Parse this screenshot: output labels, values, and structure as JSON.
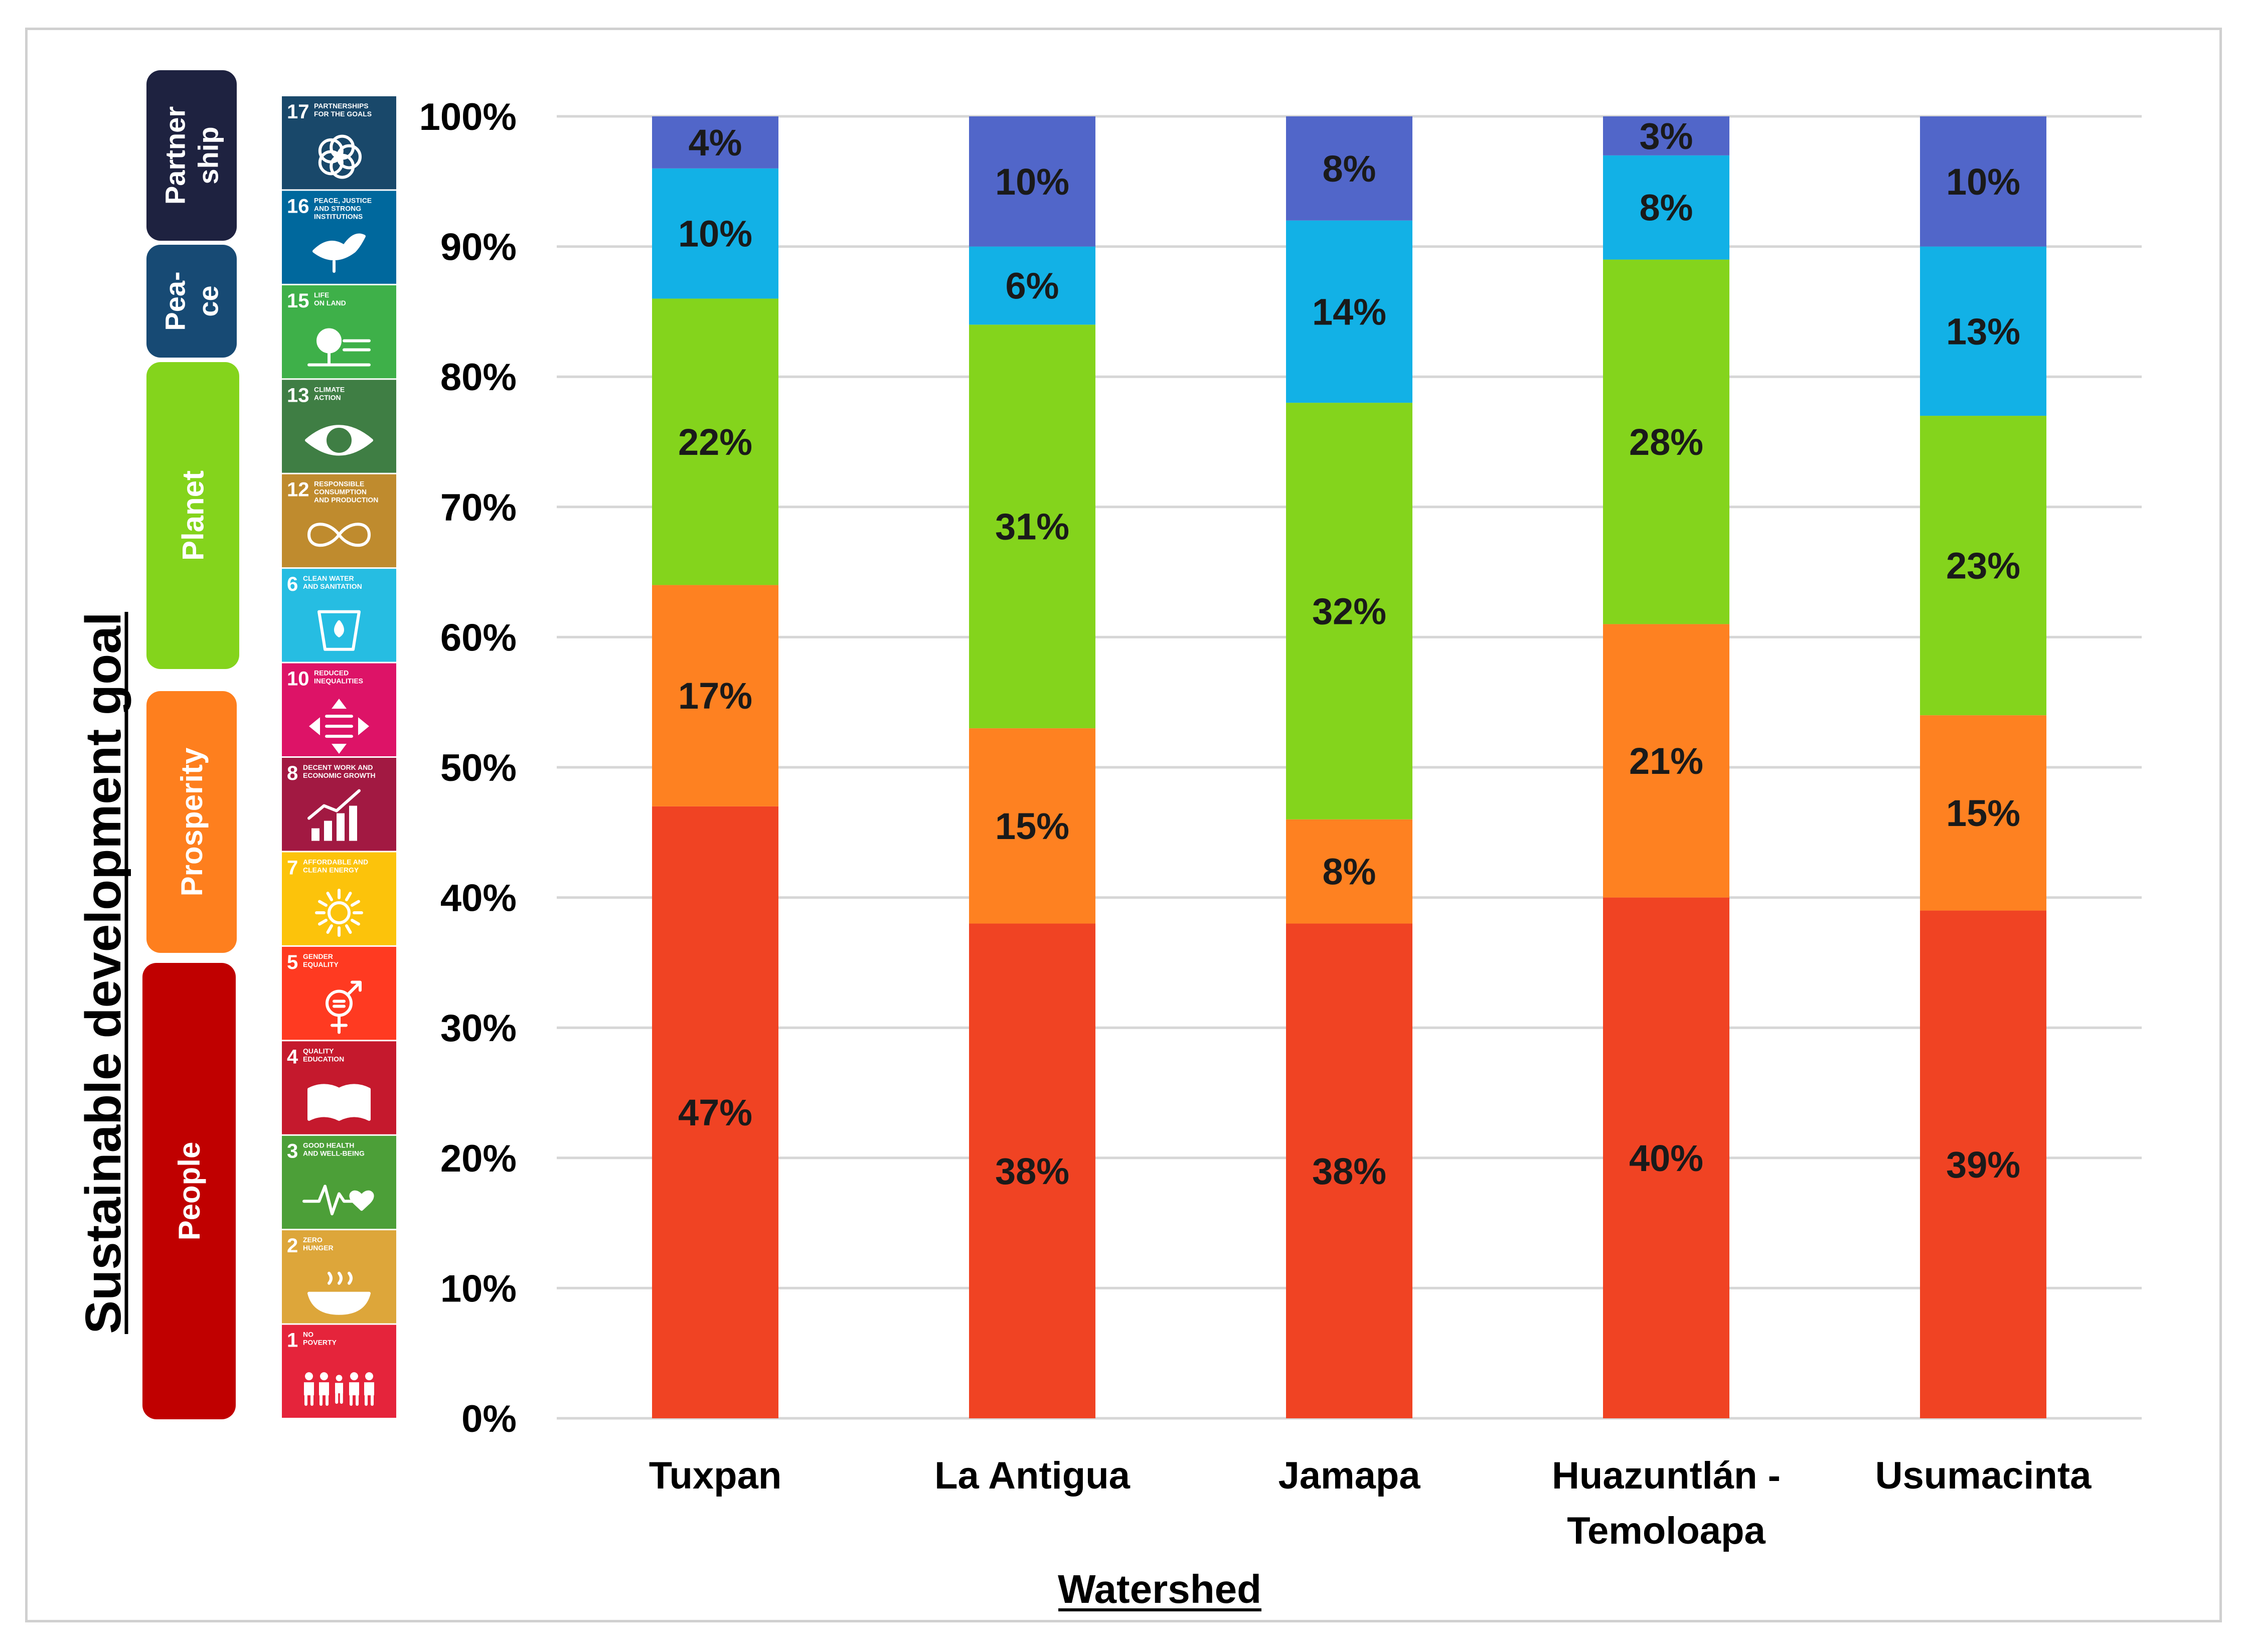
{
  "chart_data": {
    "type": "bar",
    "stacked": true,
    "xlabel": "Watershed",
    "ylabel": "Sustainable development goal",
    "ylim": [
      0,
      100
    ],
    "yticks": [
      "0%",
      "10%",
      "20%",
      "30%",
      "40%",
      "50%",
      "60%",
      "70%",
      "80%",
      "90%",
      "100%"
    ],
    "categories": [
      [
        "Tuxpan"
      ],
      [
        "La Antigua"
      ],
      [
        "Jamapa"
      ],
      [
        "Huazuntlán -",
        "Temoloapa"
      ],
      [
        "Usumacinta"
      ]
    ],
    "series": [
      {
        "name": "People",
        "color": "#F04323",
        "values": [
          47,
          38,
          38,
          40,
          39
        ],
        "labels": [
          "47%",
          "38%",
          "38%",
          "40%",
          "39%"
        ]
      },
      {
        "name": "Prosperity",
        "color": "#FE8121",
        "values": [
          17,
          15,
          8,
          21,
          15
        ],
        "labels": [
          "17%",
          "15%",
          "8%",
          "21%",
          "15%"
        ]
      },
      {
        "name": "Planet",
        "color": "#84D41C",
        "values": [
          22,
          31,
          32,
          28,
          23
        ],
        "labels": [
          "22%",
          "31%",
          "32%",
          "28%",
          "23%"
        ]
      },
      {
        "name": "Peace",
        "color": "#12B1E6",
        "values": [
          10,
          6,
          14,
          8,
          13
        ],
        "labels": [
          "10%",
          "6%",
          "14%",
          "8%",
          "13%"
        ]
      },
      {
        "name": "Partnership",
        "color": "#5166C9",
        "values": [
          4,
          10,
          8,
          3,
          10
        ],
        "labels": [
          "4%",
          "10%",
          "8%",
          "3%",
          "10%"
        ]
      }
    ],
    "grid": true
  },
  "categories_legend": [
    {
      "label_lines": [
        "Partner",
        "ship"
      ],
      "color": "#1E2240"
    },
    {
      "label_lines": [
        "Pea-",
        "ce"
      ],
      "color": "#174A74"
    },
    {
      "label_lines": [
        "Planet"
      ],
      "color": "#84D41C"
    },
    {
      "label_lines": [
        "Prosperity"
      ],
      "color": "#FE7F1E"
    },
    {
      "label_lines": [
        "People"
      ],
      "color": "#C00000"
    }
  ],
  "sdg_tiles": [
    {
      "num": "17",
      "lines": [
        "PARTNERSHIPS",
        "FOR THE GOALS"
      ],
      "color": "#19486A",
      "icon": "flower-icon"
    },
    {
      "num": "16",
      "lines": [
        "PEACE, JUSTICE",
        "AND STRONG",
        "INSTITUTIONS"
      ],
      "color": "#00689D",
      "icon": "dove-icon"
    },
    {
      "num": "15",
      "lines": [
        "LIFE",
        "ON LAND"
      ],
      "color": "#3EB049",
      "icon": "tree-icon"
    },
    {
      "num": "13",
      "lines": [
        "CLIMATE",
        "ACTION"
      ],
      "color": "#3F7E44",
      "icon": "eye-globe-icon"
    },
    {
      "num": "12",
      "lines": [
        "RESPONSIBLE",
        "CONSUMPTION",
        "AND PRODUCTION"
      ],
      "color": "#BF8B2E",
      "icon": "infinity-icon"
    },
    {
      "num": "6",
      "lines": [
        "CLEAN WATER",
        "AND SANITATION"
      ],
      "color": "#26BDE2",
      "icon": "water-glass-icon"
    },
    {
      "num": "10",
      "lines": [
        "REDUCED",
        "INEQUALITIES"
      ],
      "color": "#DD1367",
      "icon": "equality-icon"
    },
    {
      "num": "8",
      "lines": [
        "DECENT WORK AND",
        "ECONOMIC GROWTH"
      ],
      "color": "#A21942",
      "icon": "growth-chart-icon"
    },
    {
      "num": "7",
      "lines": [
        "AFFORDABLE AND",
        "CLEAN ENERGY"
      ],
      "color": "#FCC30B",
      "icon": "sun-icon"
    },
    {
      "num": "5",
      "lines": [
        "GENDER",
        "EQUALITY"
      ],
      "color": "#FF3A21",
      "icon": "gender-icon"
    },
    {
      "num": "4",
      "lines": [
        "QUALITY",
        "EDUCATION"
      ],
      "color": "#C5192D",
      "icon": "book-icon"
    },
    {
      "num": "3",
      "lines": [
        "GOOD HEALTH",
        "AND WELL-BEING"
      ],
      "color": "#4C9F38",
      "icon": "heartbeat-icon"
    },
    {
      "num": "2",
      "lines": [
        "ZERO",
        "HUNGER"
      ],
      "color": "#DDA63A",
      "icon": "bowl-icon"
    },
    {
      "num": "1",
      "lines": [
        "NO",
        "POVERTY"
      ],
      "color": "#E5243B",
      "icon": "family-icon"
    }
  ]
}
